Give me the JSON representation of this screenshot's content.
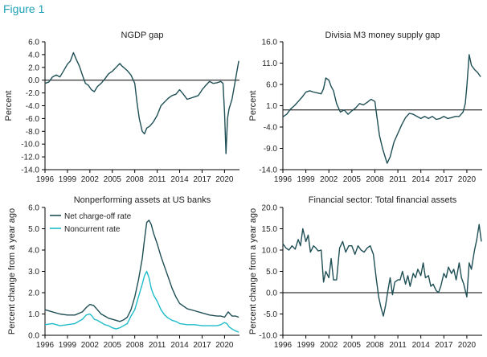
{
  "figure": {
    "label": "Figure 1"
  },
  "colors": {
    "dark": "#1e4f55",
    "light": "#1fbcc9",
    "axis": "#000000"
  },
  "chart_data": [
    {
      "type": "line",
      "title": "NGDP gap",
      "ylabel": "Percent",
      "xticks": [
        "1996",
        "1999",
        "2002",
        "2005",
        "2008",
        "2011",
        "2014",
        "2017",
        "2020"
      ],
      "yticks": [
        "6.0",
        "4.0",
        "2.0",
        "0.0",
        "-2.0",
        "-4.0",
        "-6.0",
        "-8.0",
        "-10.0",
        "-12.0",
        "-14.0"
      ],
      "ylim": [
        -14,
        6
      ],
      "xlim": [
        1996,
        2022
      ],
      "zero_line": true,
      "series": [
        {
          "color": "#1e4f55",
          "x": [
            1996,
            1996.5,
            1997,
            1997.5,
            1998,
            1998.5,
            1999,
            1999.4,
            1999.8,
            2000.2,
            2000.6,
            2001,
            2001.4,
            2001.8,
            2002.2,
            2002.6,
            2003,
            2003.5,
            2004,
            2004.5,
            2005,
            2005.5,
            2006,
            2006.3,
            2006.7,
            2007,
            2007.5,
            2008,
            2008.3,
            2008.6,
            2009,
            2009.3,
            2009.6,
            2010,
            2010.5,
            2011,
            2011.5,
            2012,
            2012.5,
            2013,
            2013.5,
            2014,
            2014.5,
            2015,
            2015.5,
            2016,
            2016.5,
            2017,
            2017.5,
            2018,
            2018.5,
            2019,
            2019.5,
            2019.8,
            2020,
            2020.2,
            2020.4,
            2020.6,
            2021,
            2021.3,
            2021.6,
            2021.9
          ],
          "y": [
            -0.5,
            -0.3,
            0.5,
            0.8,
            0.5,
            1.5,
            2.5,
            3.0,
            4.3,
            3.2,
            2.2,
            0.8,
            -0.5,
            -0.8,
            -1.5,
            -1.8,
            -1.0,
            -0.5,
            0.2,
            1.0,
            1.4,
            2.0,
            2.6,
            2.2,
            1.8,
            1.5,
            0.8,
            -0.5,
            -3.5,
            -6.0,
            -8.0,
            -8.4,
            -7.5,
            -7.2,
            -6.5,
            -5.5,
            -4.0,
            -3.4,
            -2.8,
            -2.4,
            -2.2,
            -1.5,
            -2.2,
            -3.0,
            -2.8,
            -2.6,
            -2.4,
            -1.5,
            -0.8,
            -0.2,
            -0.5,
            -0.4,
            -0.2,
            -0.5,
            -5.0,
            -11.5,
            -6.0,
            -4.5,
            -3.0,
            -1.0,
            1.0,
            3.0
          ]
        }
      ]
    },
    {
      "type": "line",
      "title": "Divisia M3 money supply gap",
      "ylabel": "Percent",
      "xticks": [
        "1996",
        "1999",
        "2002",
        "2005",
        "2008",
        "2011",
        "2014",
        "2017",
        "2020"
      ],
      "yticks": [
        "16.0",
        "11.0",
        "6.0",
        "1.0",
        "-4.0",
        "-9.0",
        "-14.0"
      ],
      "ylim": [
        -14,
        16
      ],
      "xlim": [
        1996,
        2022
      ],
      "zero_line": true,
      "series": [
        {
          "color": "#1e4f55",
          "x": [
            1996,
            1996.5,
            1997,
            1997.5,
            1998,
            1998.5,
            1999,
            1999.5,
            2000,
            2000.5,
            2001,
            2001.3,
            2001.6,
            2002,
            2002.3,
            2002.6,
            2003,
            2003.5,
            2004,
            2004.5,
            2005,
            2005.5,
            2006,
            2006.5,
            2007,
            2007.5,
            2008,
            2008.3,
            2008.6,
            2009,
            2009.3,
            2009.6,
            2010,
            2010.5,
            2011,
            2011.5,
            2012,
            2012.5,
            2013,
            2013.5,
            2014,
            2014.5,
            2015,
            2015.5,
            2016,
            2016.5,
            2017,
            2017.5,
            2018,
            2018.5,
            2019,
            2019.5,
            2019.8,
            2020,
            2020.3,
            2020.6,
            2021,
            2021.4,
            2021.8
          ],
          "y": [
            -1.6,
            -1.0,
            0.2,
            1.0,
            2.0,
            3.0,
            4.2,
            4.5,
            4.2,
            4.0,
            3.8,
            5.0,
            7.5,
            7.0,
            5.5,
            4.5,
            1.5,
            -0.5,
            0.0,
            -1.0,
            -0.2,
            0.5,
            1.5,
            1.2,
            1.8,
            2.5,
            2.0,
            -2.0,
            -6.0,
            -9.0,
            -10.8,
            -12.5,
            -11.0,
            -7.5,
            -5.5,
            -3.5,
            -1.8,
            -0.8,
            -1.0,
            -1.5,
            -2.0,
            -1.5,
            -2.0,
            -1.5,
            -2.2,
            -2.0,
            -1.5,
            -2.0,
            -1.8,
            -1.5,
            -1.5,
            -0.5,
            1.5,
            5.5,
            13.0,
            10.5,
            9.5,
            8.8,
            7.8
          ]
        }
      ]
    },
    {
      "type": "line",
      "title": "Nonperforming assets at US banks",
      "ylabel": "Percent change from a year ago",
      "xticks": [
        "1996",
        "1999",
        "2002",
        "2005",
        "2008",
        "2011",
        "2014",
        "2017",
        "2020"
      ],
      "yticks": [
        "6.0",
        "5.0",
        "4.0",
        "3.0",
        "2.0",
        "1.0",
        "0.0"
      ],
      "ylim": [
        0,
        6
      ],
      "xlim": [
        1996,
        2022
      ],
      "zero_line": false,
      "legend": {
        "placement": "top-left",
        "entries": [
          "Net charge-off rate",
          "Noncurrent rate"
        ]
      },
      "series": [
        {
          "name": "Net charge-off rate",
          "color": "#1e4f55",
          "x": [
            1996,
            1997,
            1998,
            1999,
            2000,
            2001,
            2001.5,
            2002,
            2002.5,
            2003,
            2003.5,
            2004,
            2004.5,
            2005,
            2005.5,
            2006,
            2006.5,
            2007,
            2007.5,
            2008,
            2008.5,
            2009,
            2009.3,
            2009.6,
            2009.9,
            2010.2,
            2010.5,
            2011,
            2011.5,
            2012,
            2012.5,
            2013,
            2013.5,
            2014,
            2015,
            2016,
            2017,
            2018,
            2019,
            2019.5,
            2020,
            2020.5,
            2021,
            2021.5,
            2021.9
          ],
          "y": [
            1.2,
            1.1,
            1.0,
            0.95,
            0.95,
            1.1,
            1.3,
            1.45,
            1.4,
            1.2,
            1.0,
            0.9,
            0.8,
            0.75,
            0.7,
            0.65,
            0.72,
            0.85,
            1.2,
            1.8,
            2.6,
            3.6,
            4.5,
            5.3,
            5.4,
            5.2,
            4.8,
            4.3,
            3.7,
            3.2,
            2.7,
            2.2,
            1.8,
            1.5,
            1.25,
            1.15,
            1.05,
            0.95,
            0.9,
            0.9,
            0.85,
            1.1,
            0.9,
            0.9,
            0.85
          ]
        },
        {
          "name": "Noncurrent rate",
          "color": "#1fbcc9",
          "x": [
            1996,
            1997,
            1998,
            1999,
            2000,
            2001,
            2001.5,
            2002,
            2002.3,
            2002.6,
            2003,
            2003.5,
            2004,
            2004.5,
            2005,
            2005.5,
            2006,
            2006.5,
            2007,
            2007.5,
            2008,
            2008.5,
            2009,
            2009.3,
            2009.6,
            2009.9,
            2010.2,
            2010.5,
            2011,
            2011.5,
            2012,
            2012.5,
            2013,
            2013.5,
            2014,
            2015,
            2016,
            2017,
            2018,
            2019,
            2019.5,
            2020,
            2020.3,
            2020.6,
            2021,
            2021.5,
            2021.9
          ],
          "y": [
            0.5,
            0.55,
            0.45,
            0.5,
            0.55,
            0.75,
            0.95,
            1.0,
            0.9,
            0.75,
            0.7,
            0.6,
            0.5,
            0.45,
            0.35,
            0.3,
            0.35,
            0.45,
            0.55,
            0.9,
            1.2,
            1.8,
            2.4,
            2.8,
            3.0,
            2.7,
            2.2,
            1.9,
            1.6,
            1.2,
            0.95,
            0.8,
            0.7,
            0.65,
            0.55,
            0.5,
            0.5,
            0.45,
            0.45,
            0.45,
            0.5,
            0.6,
            0.55,
            0.4,
            0.3,
            0.2,
            0.15
          ]
        }
      ]
    },
    {
      "type": "line",
      "title": "Financial sector: Total financial assets",
      "ylabel": "Percent change from a year ago",
      "xticks": [
        "1996",
        "1999",
        "2002",
        "2005",
        "2008",
        "2011",
        "2014",
        "2017",
        "2020"
      ],
      "yticks": [
        "20.0",
        "15.0",
        "10.0",
        "5.0",
        "0.0",
        "-5.0",
        "-10.0"
      ],
      "ylim": [
        -10,
        20
      ],
      "xlim": [
        1996,
        2022
      ],
      "zero_line": true,
      "series": [
        {
          "color": "#1e4f55",
          "x": [
            1996,
            1996.4,
            1996.8,
            1997.2,
            1997.6,
            1998,
            1998.3,
            1998.6,
            1999,
            1999.3,
            1999.6,
            2000,
            2000.3,
            2000.6,
            2001,
            2001.3,
            2001.6,
            2002,
            2002.3,
            2002.6,
            2003,
            2003.4,
            2003.8,
            2004.2,
            2004.6,
            2005,
            2005.4,
            2005.8,
            2006.2,
            2006.6,
            2007,
            2007.4,
            2007.8,
            2008.2,
            2008.5,
            2008.8,
            2009.1,
            2009.4,
            2009.7,
            2010,
            2010.3,
            2010.6,
            2011,
            2011.3,
            2011.6,
            2012,
            2012.3,
            2012.6,
            2013,
            2013.3,
            2013.6,
            2014,
            2014.3,
            2014.6,
            2015,
            2015.3,
            2015.6,
            2016,
            2016.3,
            2016.6,
            2017,
            2017.3,
            2017.6,
            2018,
            2018.3,
            2018.6,
            2019,
            2019.3,
            2019.6,
            2020,
            2020.3,
            2020.6,
            2021,
            2021.3,
            2021.6,
            2021.9
          ],
          "y": [
            11.5,
            10.5,
            10.0,
            11.0,
            10.2,
            12.5,
            11.0,
            15.0,
            12.0,
            13.5,
            9.5,
            11.0,
            10.5,
            9.8,
            10.0,
            2.5,
            5.0,
            3.5,
            8.0,
            3.0,
            3.0,
            10.5,
            12.0,
            9.5,
            11.0,
            11.0,
            9.0,
            11.0,
            10.0,
            9.5,
            10.5,
            11.0,
            9.0,
            3.0,
            -1.0,
            -3.5,
            -5.5,
            -3.0,
            0.5,
            3.5,
            -0.5,
            2.5,
            3.0,
            3.0,
            5.0,
            2.0,
            4.0,
            1.5,
            4.5,
            3.5,
            5.5,
            4.0,
            7.0,
            3.5,
            4.0,
            1.5,
            2.0,
            0.5,
            0.0,
            1.5,
            4.5,
            3.5,
            6.0,
            4.5,
            5.5,
            3.0,
            7.0,
            3.5,
            2.0,
            -1.0,
            7.0,
            5.5,
            10.0,
            12.5,
            16.0,
            12.0
          ]
        }
      ]
    }
  ]
}
